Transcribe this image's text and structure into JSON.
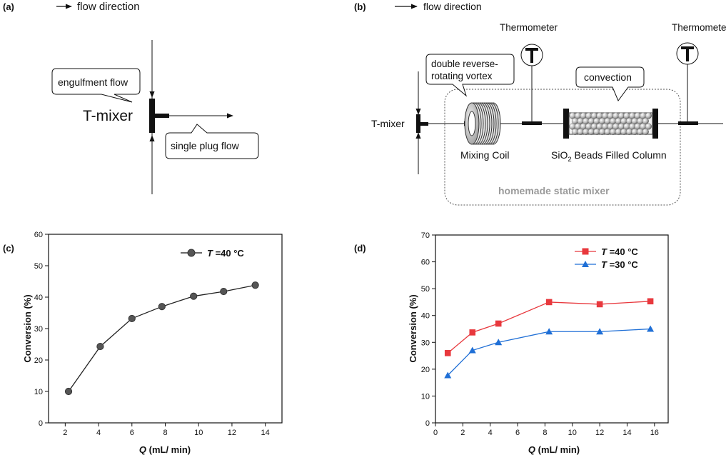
{
  "panel_a": {
    "label": "(a)",
    "flow_legend": "flow direction",
    "tmixer_label": "T-mixer",
    "callout_top": "engulfment flow",
    "callout_bottom": "single plug flow"
  },
  "panel_b": {
    "label": "(b)",
    "flow_legend": "flow direction",
    "thermometer_1": "Thermometer",
    "thermometer_2": "Thermometer",
    "callout_vortex_line1": "double reverse-",
    "callout_vortex_line2": "rotating vortex",
    "callout_convection": "convection",
    "tmixer_label": "T-mixer",
    "mixing_coil_label": "Mixing Coil",
    "column_label_prefix": "SiO",
    "column_label_sub": "2",
    "column_label_suffix": " Beads Filled Column",
    "static_mixer_label": "homemade static mixer"
  },
  "colors": {
    "series_c": "#555555",
    "red": "#e8383d",
    "blue": "#1f6fd6",
    "grey_text": "#9a9a9a"
  },
  "chart_data": [
    {
      "panel": "(c)",
      "type": "line",
      "xlabel_italic": "Q",
      "xlabel_rest": " (mL/ min)",
      "ylabel": "Conversion (%)",
      "xlim": [
        1,
        15
      ],
      "ylim": [
        0,
        60
      ],
      "xticks": [
        2,
        4,
        6,
        8,
        10,
        12,
        14
      ],
      "yticks": [
        0,
        10,
        20,
        30,
        40,
        50,
        60
      ],
      "legend_loc": "top-right",
      "series": [
        {
          "name_italic": "T",
          "name_rest": " =40 °C",
          "marker": "circle",
          "color": "#555555",
          "x": [
            2.2,
            4.1,
            6.0,
            7.8,
            9.7,
            11.5,
            13.4
          ],
          "y": [
            10,
            24.3,
            33.2,
            37.0,
            40.3,
            41.8,
            43.8
          ]
        }
      ]
    },
    {
      "panel": "(d)",
      "type": "line",
      "xlabel_italic": "Q",
      "xlabel_rest": " (mL/ min)",
      "ylabel": "Conversion (%)",
      "xlim": [
        0,
        17
      ],
      "ylim": [
        0,
        70
      ],
      "xticks": [
        0,
        2,
        4,
        6,
        8,
        10,
        12,
        14,
        16
      ],
      "yticks": [
        0,
        10,
        20,
        30,
        40,
        50,
        60,
        70
      ],
      "legend_loc": "top-right",
      "series": [
        {
          "name_italic": "T",
          "name_rest": " =40 °C",
          "marker": "square",
          "color": "#e8383d",
          "x": [
            0.9,
            2.7,
            4.6,
            8.3,
            12.0,
            15.7
          ],
          "y": [
            26,
            33.7,
            37,
            45,
            44.2,
            45.3
          ]
        },
        {
          "name_italic": "T",
          "name_rest": " =30 °C",
          "marker": "triangle",
          "color": "#1f6fd6",
          "x": [
            0.9,
            2.7,
            4.6,
            8.3,
            12.0,
            15.7
          ],
          "y": [
            17.7,
            27,
            30,
            34,
            34,
            35
          ]
        }
      ]
    }
  ]
}
